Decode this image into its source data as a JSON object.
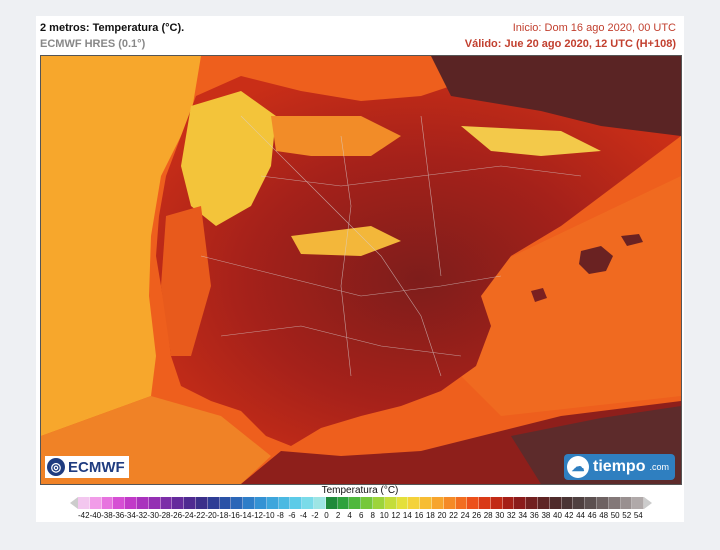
{
  "header": {
    "title": "2 metros: Temperatura (°C).",
    "model": "ECMWF HRES (0.1°)",
    "init": "Inicio: Dom 16 ago 2020, 00 UTC",
    "valid": "Válido: Jue 20 ago 2020, 12 UTC (H+108)"
  },
  "logos": {
    "ecmwf": "ECMWF",
    "tiempo": "tiempo",
    "tiempo_domain": ".com"
  },
  "legend": {
    "title": "Temperatura (°C)",
    "ticks": [
      "-42",
      "-40",
      "-38",
      "-36",
      "-34",
      "-32",
      "-30",
      "-28",
      "-26",
      "-24",
      "-22",
      "-20",
      "-18",
      "-16",
      "-14",
      "-12",
      "-10",
      "-8",
      "-6",
      "-4",
      "-2",
      "0",
      "2",
      "4",
      "6",
      "8",
      "10",
      "12",
      "14",
      "16",
      "18",
      "20",
      "22",
      "24",
      "26",
      "28",
      "30",
      "32",
      "34",
      "36",
      "38",
      "40",
      "42",
      "44",
      "46",
      "48",
      "50",
      "52",
      "54"
    ],
    "colors": [
      "#f3c7ef",
      "#f19ce8",
      "#e773df",
      "#d64fd4",
      "#c13ac8",
      "#a933bd",
      "#9430b3",
      "#7c2ea8",
      "#652b9c",
      "#4f2a91",
      "#3b2f8a",
      "#2f3d95",
      "#2a52a6",
      "#2c67b8",
      "#2e7dc8",
      "#3492d4",
      "#3ea6dc",
      "#4bb9e2",
      "#5ccbe8",
      "#7adbe9",
      "#9de5e4",
      "#1f8a3a",
      "#2fa23d",
      "#4fb83c",
      "#76c83a",
      "#9dd43a",
      "#c4dd3a",
      "#e4e03b",
      "#f4d23a",
      "#f7bd34",
      "#f7a52d",
      "#f58a26",
      "#f26d20",
      "#ec501b",
      "#d93a17",
      "#c22a16",
      "#a51f17",
      "#8b1b1b",
      "#722020",
      "#5e2424",
      "#4f2b2b",
      "#4a3434",
      "#4f4040",
      "#5c5050",
      "#6e6262",
      "#837878",
      "#999090",
      "#b0a9a9"
    ]
  }
}
